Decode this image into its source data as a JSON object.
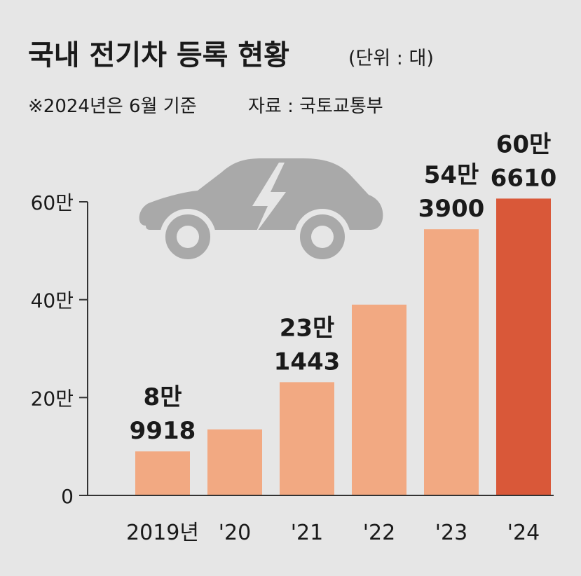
{
  "title": "국내 전기차 등록 현황",
  "unit": "(단위 : 대)",
  "note": "※2024년은 6월 기준",
  "source": "자료 : 국토교통부",
  "colors": {
    "background": "#e6e6e6",
    "bar": "#f2a982",
    "bar_highlight": "#d95839",
    "axis": "#333333",
    "text": "#1a1a1a",
    "icon": "#a9a9a9"
  },
  "chart_data": {
    "type": "bar",
    "categories": [
      "2019년",
      "'20",
      "'21",
      "'22",
      "'23",
      "'24"
    ],
    "values": [
      89918,
      134962,
      231443,
      389855,
      543900,
      606610
    ],
    "value_labels": [
      [
        "8만",
        "9918"
      ],
      null,
      [
        "23만",
        "1443"
      ],
      null,
      [
        "54만",
        "3900"
      ],
      [
        "60만",
        "6610"
      ]
    ],
    "highlight_index": 5,
    "y_ticks": [
      {
        "value": 0,
        "label": "0"
      },
      {
        "value": 200000,
        "label": "20만"
      },
      {
        "value": 400000,
        "label": "40만"
      },
      {
        "value": 600000,
        "label": "60만"
      }
    ],
    "ylim": [
      0,
      600000
    ],
    "grid": false,
    "xlabel": "",
    "ylabel": ""
  }
}
